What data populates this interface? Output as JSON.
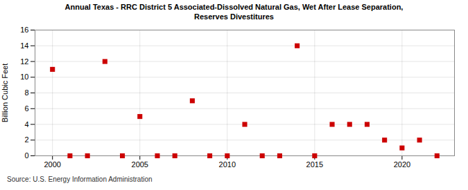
{
  "chart_data": {
    "type": "scatter",
    "title": "Annual Texas - RRC District 5 Associated-Dissolved Natural Gas, Wet After Lease Separation,\nReserves Divestitures",
    "ylabel": "Billion Cubic Feet",
    "annotations": [
      "Source: U.S. Energy Information Administration"
    ],
    "x": [
      2000,
      2001,
      2002,
      2003,
      2004,
      2005,
      2006,
      2007,
      2008,
      2009,
      2010,
      2011,
      2012,
      2013,
      2014,
      2015,
      2016,
      2017,
      2018,
      2019,
      2020,
      2021,
      2022
    ],
    "values": [
      11,
      0,
      0,
      12,
      0,
      5,
      0,
      0,
      7,
      0,
      0,
      4,
      0,
      0,
      14,
      0,
      4,
      4,
      4,
      2,
      1,
      2,
      0
    ],
    "color": "#cc0000",
    "marker": "square",
    "xlim": [
      1999,
      2023
    ],
    "ylim": [
      0,
      16
    ],
    "xticks": [
      2000,
      2005,
      2010,
      2015,
      2020
    ],
    "yticks": [
      0,
      2,
      4,
      6,
      8,
      10,
      12,
      14,
      16
    ],
    "grid": true
  }
}
